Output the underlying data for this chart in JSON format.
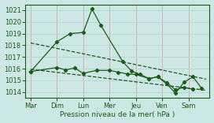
{
  "bg_color": "#cde8e4",
  "grid_color_h": "#b8d8d4",
  "grid_color_v": "#d4b0b0",
  "line_color": "#1a5c1a",
  "tick_label_color": "#1a5c1a",
  "xlabel": "Pression niveau de la mer( hPa )",
  "ylim": [
    1013.5,
    1021.5
  ],
  "yticks": [
    1014,
    1015,
    1016,
    1017,
    1018,
    1019,
    1020,
    1021
  ],
  "day_labels": [
    "Mar",
    "Dim",
    "Lun",
    "Mer",
    "Jeu",
    "Ven",
    "Sam"
  ],
  "day_positions": [
    0,
    1,
    2,
    3,
    4,
    5,
    6
  ],
  "series1_x": [
    0,
    1.0,
    1.5,
    2.0,
    2.33,
    2.67,
    3.5,
    3.83,
    4.17,
    4.5,
    4.83,
    5.17,
    5.5,
    5.83,
    6.17,
    6.5
  ],
  "series1_y": [
    1015.75,
    1018.3,
    1019.0,
    1019.1,
    1021.1,
    1019.7,
    1016.6,
    1015.8,
    1015.5,
    1015.15,
    1015.3,
    1014.7,
    1013.9,
    1014.85,
    1015.3,
    1014.3
  ],
  "series2_x": [
    0,
    1.0,
    1.33,
    1.67,
    2.0,
    2.5,
    3.0,
    3.33,
    3.67,
    4.0,
    4.5,
    4.83,
    5.17,
    5.5,
    5.83,
    6.17
  ],
  "series2_y": [
    1015.75,
    1016.1,
    1015.9,
    1016.05,
    1015.6,
    1015.85,
    1015.85,
    1015.7,
    1015.55,
    1015.5,
    1015.15,
    1015.3,
    1014.8,
    1014.2,
    1014.4,
    1014.25
  ],
  "trend1_x": [
    0,
    6.67
  ],
  "trend1_y": [
    1018.2,
    1015.1
  ],
  "trend2_x": [
    0,
    6.67
  ],
  "trend2_y": [
    1015.95,
    1014.15
  ],
  "xlim": [
    -0.2,
    6.8
  ]
}
